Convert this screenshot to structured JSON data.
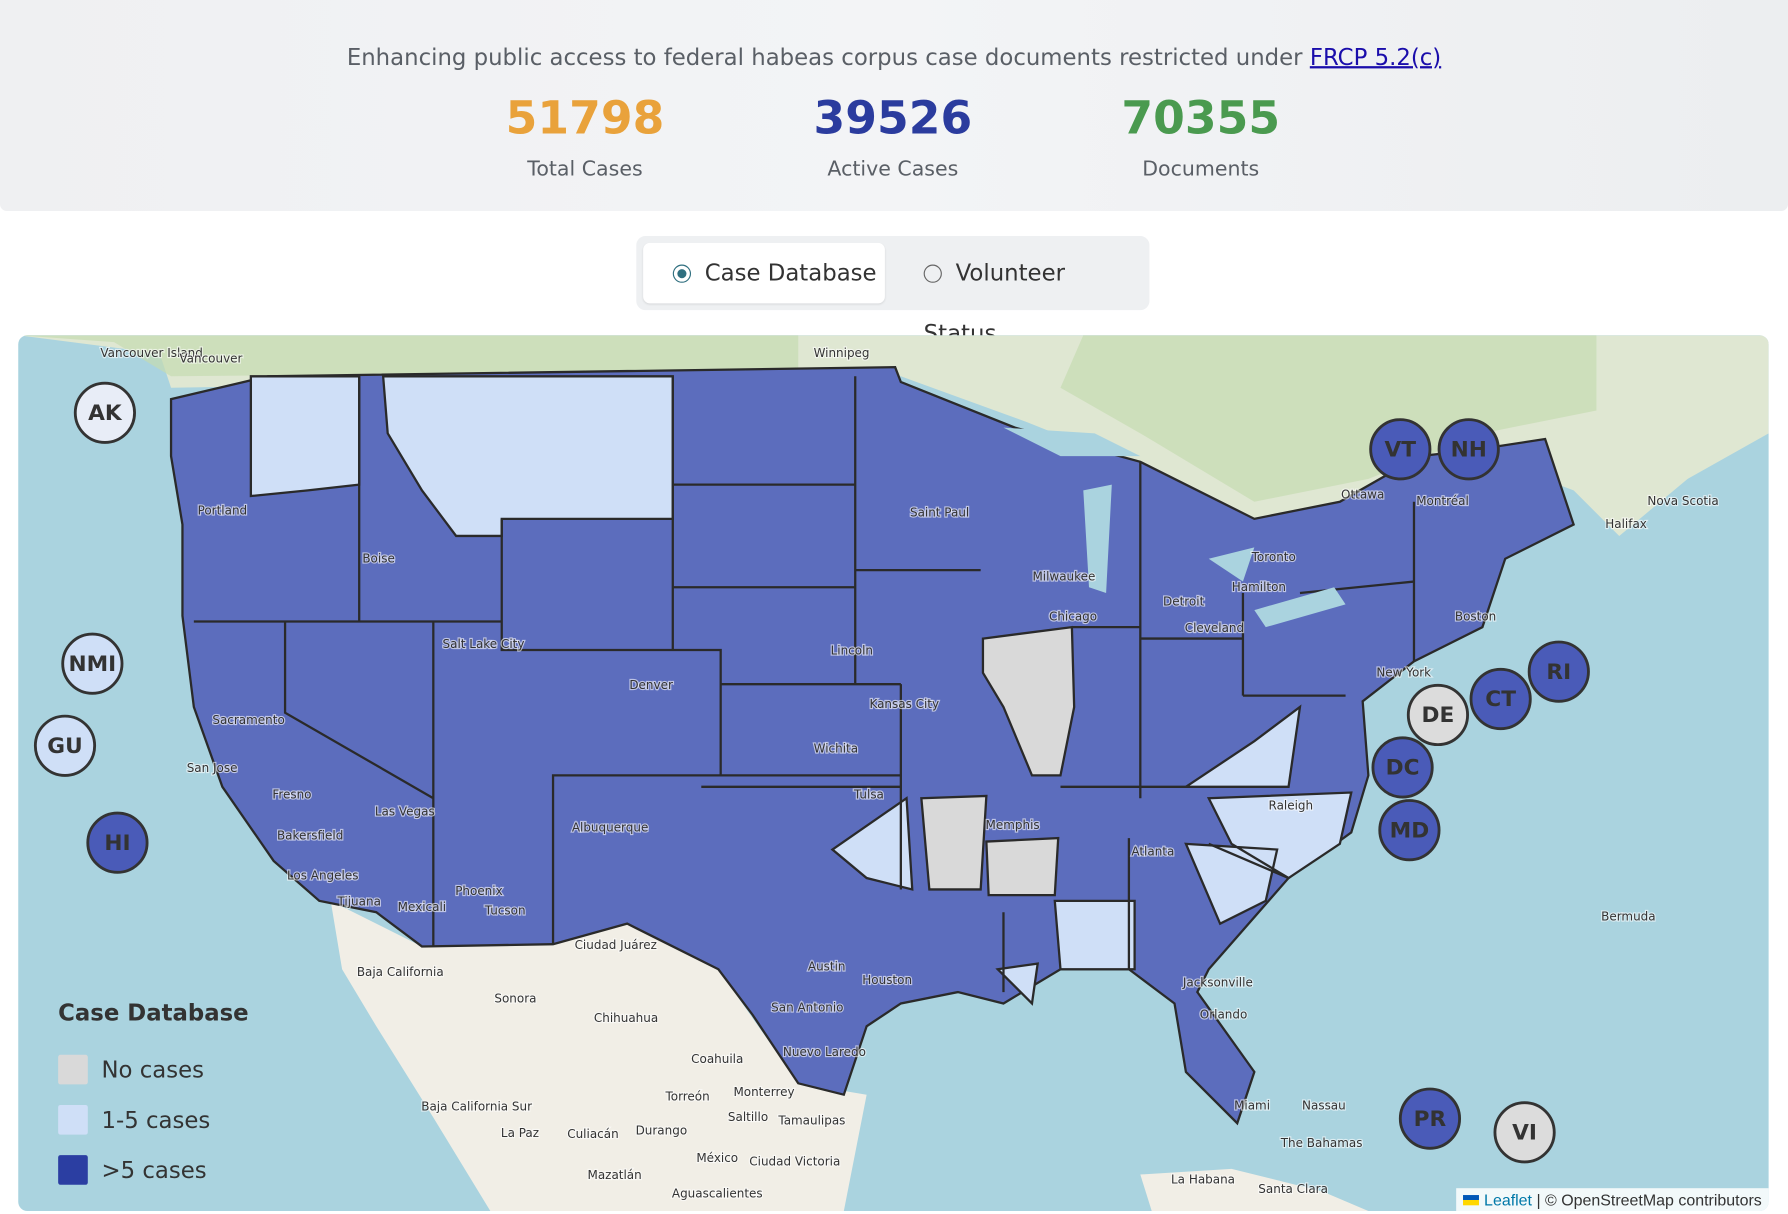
{
  "header": {
    "subtitle": "Enhancing public access to federal habeas corpus case documents restricted under",
    "link": "FRCP 5.2(c)"
  },
  "stats": [
    {
      "value": 51798,
      "label": "Total Cases",
      "color": "#e9a23b"
    },
    {
      "value": 39526,
      "label": "Active Cases",
      "color": "#2b3c9e"
    },
    {
      "value": 70355,
      "label": "Documents",
      "color": "#4a9a4f"
    }
  ],
  "toggle": {
    "options": [
      "Case Database",
      "Volunteer Status"
    ],
    "selected": 0
  },
  "legend": {
    "title": "Case Database",
    "items": [
      {
        "label": "No cases",
        "color": "#d9d9d9"
      },
      {
        "label": "1-5 cases",
        "color": "#cfdff7"
      },
      {
        "label": ">5 cases",
        "color": "#2b3ea2"
      }
    ]
  },
  "markers": [
    {
      "label": "AK",
      "color": "#e8edf7"
    },
    {
      "label": "NMI",
      "color": "#cfdff7"
    },
    {
      "label": "GU",
      "color": "#cfdff7"
    },
    {
      "label": "HI",
      "color": "#4a5bb8"
    },
    {
      "label": "VT",
      "color": "#4a5bb8"
    },
    {
      "label": "NH",
      "color": "#4a5bb8"
    },
    {
      "label": "RI",
      "color": "#4a5bb8"
    },
    {
      "label": "CT",
      "color": "#4a5bb8"
    },
    {
      "label": "DE",
      "color": "#dcdcdc"
    },
    {
      "label": "DC",
      "color": "#4a5bb8"
    },
    {
      "label": "MD",
      "color": "#4a5bb8"
    },
    {
      "label": "PR",
      "color": "#4a5bb8"
    },
    {
      "label": "VI",
      "color": "#dcdcdc"
    }
  ],
  "places": [
    "Vancouver Island",
    "Vancouver",
    "Winnipeg",
    "Ottawa",
    "Montréal",
    "Toronto",
    "Hamilton",
    "Halifax",
    "Nova Scotia",
    "Portland",
    "Boise",
    "Salt Lake City",
    "Sacramento",
    "San Jose",
    "Fresno",
    "Bakersfield",
    "Los Angeles",
    "Las Vegas",
    "Tijuana",
    "Mexicali",
    "Phoenix",
    "Tucson",
    "Denver",
    "Albuquerque",
    "Ciudad Juárez",
    "Wichita",
    "Lincoln",
    "Kansas City",
    "Saint Paul",
    "Milwaukee",
    "Chicago",
    "Detroit",
    "Cleveland",
    "Tulsa",
    "Memphis",
    "Atlanta",
    "Raleigh",
    "Boston",
    "New York",
    "Austin",
    "San Antonio",
    "Houston",
    "Nuevo Laredo",
    "Jacksonville",
    "Orlando",
    "Miami",
    "Nassau",
    "The Bahamas",
    "La Habana",
    "Santa Clara",
    "Bermuda",
    "Baja California",
    "Sonora",
    "Chihuahua",
    "Coahuila",
    "Baja California Sur",
    "La Paz",
    "Culiacán",
    "Durango",
    "Torreón",
    "Monterrey",
    "Saltillo",
    "Tamaulipas",
    "México",
    "Ciudad Victoria",
    "Mazatlán",
    "Aguascalientes"
  ],
  "attribution": {
    "link": "Leaflet",
    "text": "| © OpenStreetMap contributors"
  }
}
